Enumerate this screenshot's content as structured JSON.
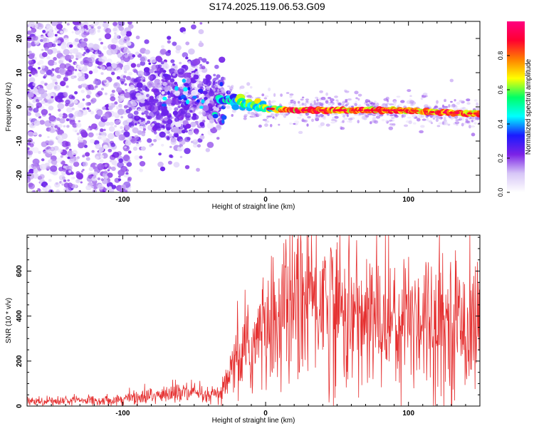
{
  "title": "S174.2025.119.06.53.G09",
  "chart_data": [
    {
      "type": "heatmap",
      "xlabel": "Height of straight line (km)",
      "ylabel": "Frequency (Hz)",
      "xlim": [
        -167,
        150
      ],
      "ylim": [
        -25,
        25
      ],
      "xticks": [
        -100,
        0,
        100
      ],
      "yticks": [
        -20,
        -10,
        0,
        10,
        20
      ],
      "colorbar": {
        "label": "Normalized spectral amplitude",
        "range": [
          0,
          1
        ],
        "ticks": [
          0.0,
          0.2,
          0.4,
          0.6,
          0.8
        ],
        "colors": [
          "#ffffff",
          "#d7c6f7",
          "#7b22e6",
          "#1a1aff",
          "#00ffff",
          "#00ff66",
          "#ffff00",
          "#ff8000",
          "#ff0030",
          "#ff0080"
        ]
      },
      "ridge": {
        "note_points": [
          [
            -35,
            2.5
          ],
          [
            -20,
            1.5
          ],
          [
            -5,
            0
          ],
          [
            0,
            -0.5
          ],
          [
            20,
            -1
          ],
          [
            60,
            -1
          ],
          [
            100,
            -1
          ],
          [
            115,
            -1.5
          ],
          [
            150,
            -2
          ]
        ]
      }
    },
    {
      "type": "line",
      "xlabel": "Height of straight line (km)",
      "ylabel": "SNR (10 * v/v)",
      "xlim": [
        -167,
        150
      ],
      "ylim": [
        0,
        760
      ],
      "xticks": [
        -100,
        0,
        100
      ],
      "yticks": [
        0,
        200,
        400,
        600
      ],
      "color": "#e53030",
      "envelope": [
        [
          -167,
          22
        ],
        [
          -140,
          24
        ],
        [
          -110,
          26
        ],
        [
          -95,
          35
        ],
        [
          -80,
          45
        ],
        [
          -60,
          60
        ],
        [
          -50,
          55
        ],
        [
          -40,
          40
        ],
        [
          -30,
          60
        ],
        [
          -25,
          130
        ],
        [
          -20,
          200
        ],
        [
          -10,
          260
        ],
        [
          -5,
          310
        ],
        [
          0,
          330
        ],
        [
          10,
          400
        ],
        [
          20,
          460
        ],
        [
          30,
          470
        ],
        [
          40,
          480
        ],
        [
          50,
          430
        ],
        [
          60,
          400
        ],
        [
          70,
          380
        ],
        [
          80,
          390
        ],
        [
          90,
          380
        ],
        [
          100,
          400
        ],
        [
          110,
          410
        ],
        [
          120,
          380
        ],
        [
          130,
          370
        ],
        [
          140,
          360
        ],
        [
          150,
          360
        ]
      ]
    }
  ]
}
